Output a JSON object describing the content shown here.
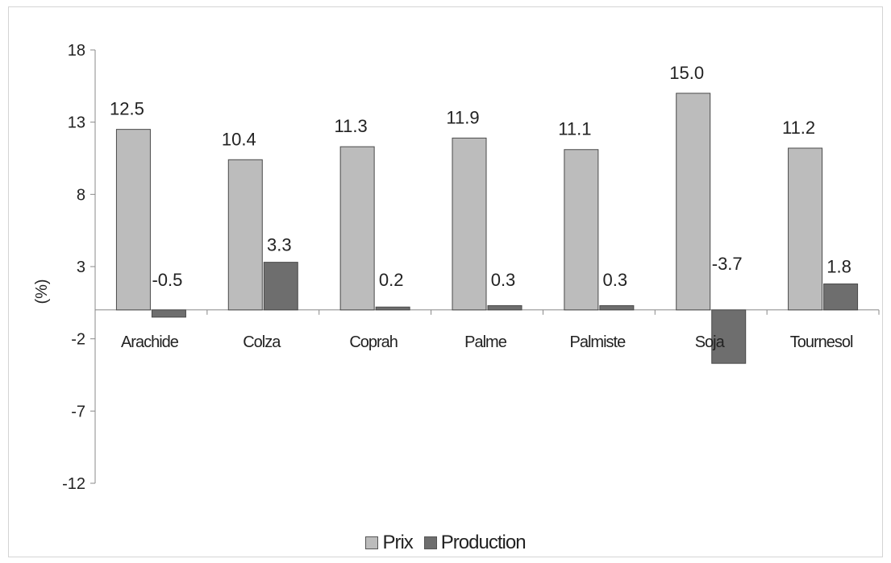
{
  "chart_data": {
    "type": "bar",
    "title": "",
    "xlabel": "",
    "ylabel": "(%)",
    "ylim": [
      -12,
      18
    ],
    "yticks": [
      18,
      13,
      8,
      3,
      -2,
      -7,
      -12
    ],
    "grid": false,
    "legend_position": "bottom",
    "categories": [
      "Arachide",
      "Colza",
      "Coprah",
      "Palme",
      "Palmiste",
      "Soja",
      "Tournesol"
    ],
    "series": [
      {
        "name": "Prix",
        "values": [
          12.5,
          10.4,
          11.3,
          11.9,
          11.1,
          15.0,
          11.2
        ],
        "labels": [
          "12.5",
          "10.4",
          "11.3",
          "11.9",
          "11.1",
          "15.0",
          "11.2"
        ],
        "color": "#bcbcbc"
      },
      {
        "name": "Production",
        "values": [
          -0.5,
          3.3,
          0.2,
          0.3,
          0.3,
          -3.7,
          1.8
        ],
        "labels": [
          "-0.5",
          "3.3",
          "0.2",
          "0.3",
          "0.3",
          "-3.7",
          "1.8"
        ],
        "color": "#6e6e6e"
      }
    ]
  }
}
